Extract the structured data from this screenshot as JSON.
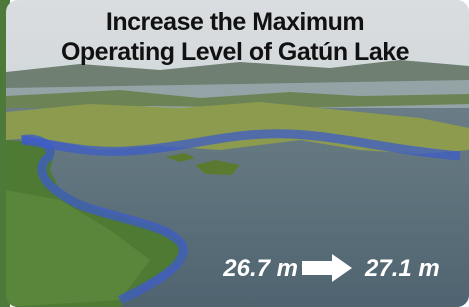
{
  "title_lines": [
    "Increase the Maximum",
    "Operating Level of Gatún Lake"
  ],
  "levels": {
    "from": "26.7 m",
    "to": "27.1 m"
  }
}
